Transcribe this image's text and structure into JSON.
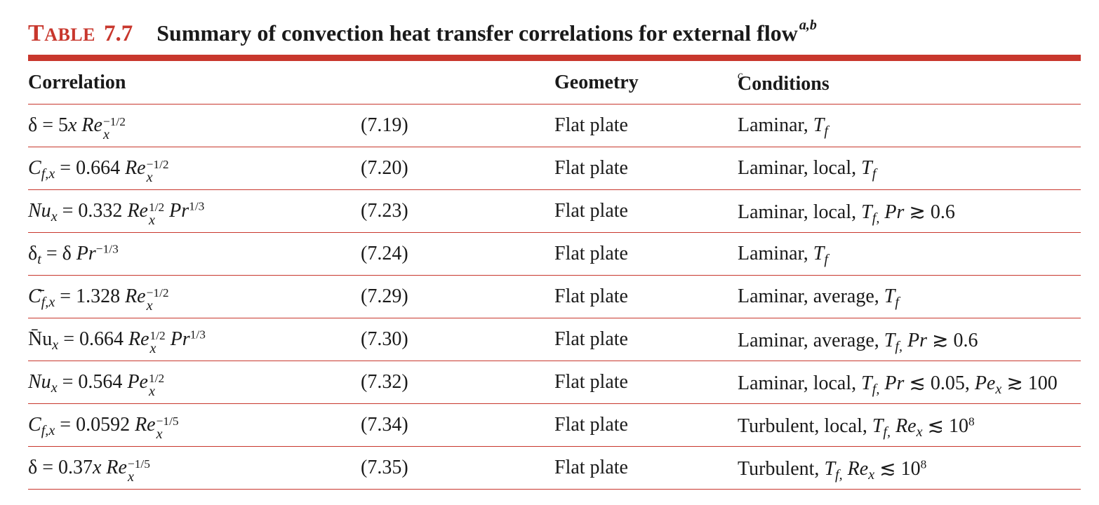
{
  "table": {
    "label": "Table",
    "number": "7.7",
    "title": "Summary of convection heat transfer correlations for external flow",
    "title_footnotes": "a,b"
  },
  "header": {
    "correlation": "Correlation",
    "geometry": "Geometry",
    "conditions": "Conditions",
    "conditions_footnote": "c"
  },
  "rows": [
    {
      "correlation": "δ = 5x Re_x^(−1/2)",
      "equation": "(7.19)",
      "geometry": "Flat plate",
      "conditions": "Laminar, T_f"
    },
    {
      "correlation": "C_f,x = 0.664 Re_x^(−1/2)",
      "equation": "(7.20)",
      "geometry": "Flat plate",
      "conditions": "Laminar, local, T_f"
    },
    {
      "correlation": "Nu_x = 0.332 Re_x^(1/2) Pr^(1/3)",
      "equation": "(7.23)",
      "geometry": "Flat plate",
      "conditions": "Laminar, local, T_f, Pr ≳ 0.6"
    },
    {
      "correlation": "δ_t = δ Pr^(−1/3)",
      "equation": "(7.24)",
      "geometry": "Flat plate",
      "conditions": "Laminar, T_f"
    },
    {
      "correlation": "C̄_f,x = 1.328 Re_x^(−1/2)",
      "equation": "(7.29)",
      "geometry": "Flat plate",
      "conditions": "Laminar, average, T_f"
    },
    {
      "correlation": "N̄u_x = 0.664 Re_x^(1/2) Pr^(1/3)",
      "equation": "(7.30)",
      "geometry": "Flat plate",
      "conditions": "Laminar, average, T_f, Pr ≳ 0.6"
    },
    {
      "correlation": "Nu_x = 0.564 Pe_x^(1/2)",
      "equation": "(7.32)",
      "geometry": "Flat plate",
      "conditions": "Laminar, local, T_f, Pr ≲ 0.05, Pe_x ≳ 100"
    },
    {
      "correlation": "C_f,x = 0.0592 Re_x^(−1/5)",
      "equation": "(7.34)",
      "geometry": "Flat plate",
      "conditions": "Turbulent, local, T_f, Re_x ≲ 10^8"
    },
    {
      "correlation": "δ = 0.37x Re_x^(−1/5)",
      "equation": "(7.35)",
      "geometry": "Flat plate",
      "conditions": "Turbulent, T_f, Re_x ≲ 10^8"
    }
  ],
  "colors": {
    "accent": "#c8372d",
    "text": "#1a1a1a"
  }
}
